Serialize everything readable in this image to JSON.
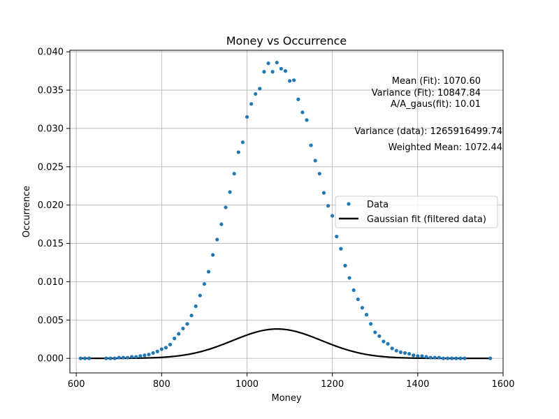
{
  "chart_data": {
    "type": "scatter",
    "title": "Money vs Occurrence",
    "xlabel": "Money",
    "ylabel": "Occurrence",
    "xlim": [
      585,
      1600
    ],
    "ylim": [
      -0.0019,
      0.0402
    ],
    "xticks": [
      600,
      800,
      1000,
      1200,
      1400,
      1600
    ],
    "xtick_labels": [
      "600",
      "800",
      "1000",
      "1200",
      "1400",
      "1600"
    ],
    "yticks": [
      0.0,
      0.005,
      0.01,
      0.015,
      0.02,
      0.025,
      0.03,
      0.035,
      0.04
    ],
    "ytick_labels": [
      "0.000",
      "0.005",
      "0.010",
      "0.015",
      "0.020",
      "0.025",
      "0.030",
      "0.035",
      "0.040"
    ],
    "grid": true,
    "legend_position": "center-right",
    "colors": {
      "data": "#1f77b4",
      "fit": "#000000"
    },
    "series": [
      {
        "name": "Data",
        "kind": "points",
        "x": [
          610,
          620,
          630,
          670,
          680,
          690,
          700,
          710,
          720,
          730,
          740,
          750,
          760,
          770,
          780,
          790,
          800,
          810,
          820,
          830,
          840,
          850,
          860,
          870,
          880,
          890,
          900,
          910,
          920,
          930,
          940,
          950,
          960,
          970,
          980,
          990,
          1000,
          1010,
          1020,
          1030,
          1040,
          1050,
          1060,
          1070,
          1080,
          1090,
          1100,
          1110,
          1120,
          1130,
          1140,
          1150,
          1160,
          1170,
          1180,
          1190,
          1200,
          1210,
          1220,
          1230,
          1240,
          1250,
          1260,
          1270,
          1280,
          1290,
          1300,
          1310,
          1320,
          1330,
          1340,
          1350,
          1360,
          1370,
          1380,
          1390,
          1400,
          1410,
          1420,
          1430,
          1440,
          1450,
          1460,
          1470,
          1480,
          1490,
          1500,
          1510,
          1570
        ],
        "y": [
          0.0,
          0.0,
          0.0,
          0.0,
          0.0,
          0.0,
          0.0001,
          0.0001,
          0.0001,
          0.0002,
          0.0002,
          0.0003,
          0.0004,
          0.0005,
          0.0007,
          0.0009,
          0.0012,
          0.0014,
          0.0018,
          0.0026,
          0.0032,
          0.0039,
          0.0045,
          0.0056,
          0.0068,
          0.0082,
          0.0097,
          0.0113,
          0.0135,
          0.0155,
          0.0175,
          0.0197,
          0.0217,
          0.0241,
          0.0269,
          0.0282,
          0.0315,
          0.0332,
          0.0345,
          0.0352,
          0.0374,
          0.0385,
          0.0374,
          0.0386,
          0.0378,
          0.0375,
          0.0362,
          0.0363,
          0.0338,
          0.0321,
          0.0311,
          0.0278,
          0.0258,
          0.0241,
          0.0216,
          0.0199,
          0.0186,
          0.0159,
          0.0143,
          0.0121,
          0.0105,
          0.0089,
          0.0077,
          0.0066,
          0.0057,
          0.0045,
          0.0034,
          0.0029,
          0.0022,
          0.0019,
          0.0013,
          0.001,
          0.0008,
          0.0007,
          0.0006,
          0.0004,
          0.0003,
          0.0003,
          0.0002,
          0.0001,
          0.0001,
          0.0001,
          0.0,
          0.0,
          0.0,
          0.0,
          0.0,
          0.0,
          0.0
        ]
      },
      {
        "name": "Gaussian fit (filtered data)",
        "kind": "line",
        "model": "gaussian",
        "mean": 1070.6,
        "variance": 10847.84,
        "x_range": [
          610,
          1570
        ]
      }
    ],
    "annotations": [
      "Mean (Fit): 1070.60",
      "Variance (Fit): 10847.84",
      "A/A_gaus(fit): 10.01",
      "Variance (data): 1265916499.74",
      "Weighted Mean: 1072.44"
    ]
  }
}
